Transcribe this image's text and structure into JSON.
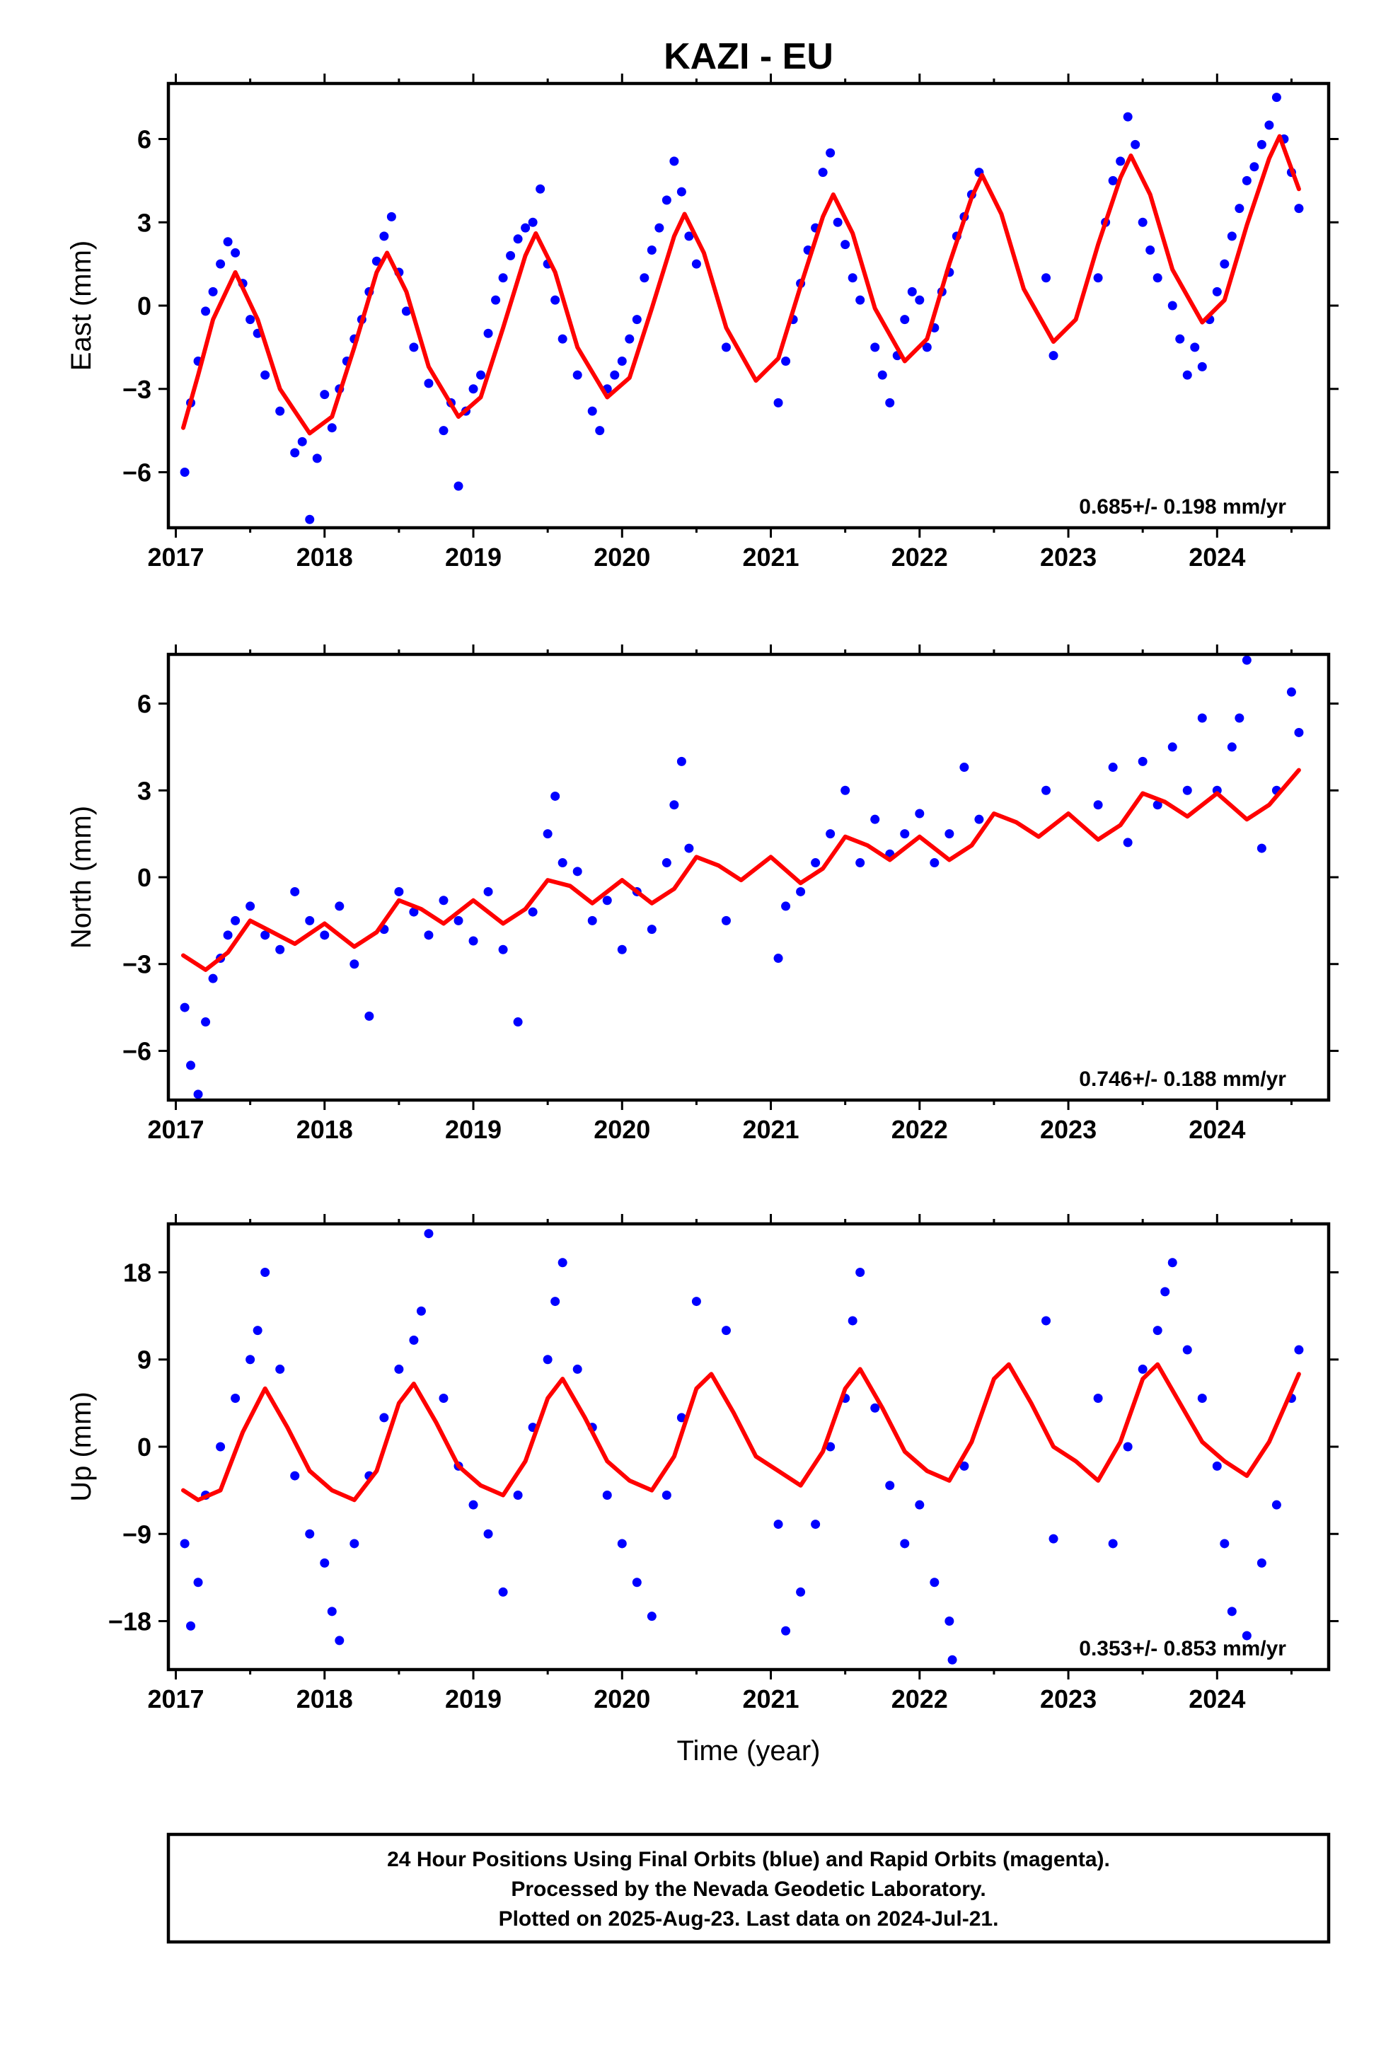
{
  "title": "KAZI - EU",
  "colors": {
    "obs": "#0000ff",
    "model": "#ff0000",
    "axes": "#000000"
  },
  "xlabel": "Time (year)",
  "footer": {
    "lines": [
      "24 Hour Positions Using Final Orbits (blue) and Rapid Orbits (magenta).",
      "Processed by the Nevada Geodetic Laboratory.",
      "Plotted on 2025-Aug-23. Last data on 2024-Jul-21."
    ]
  },
  "chart_data": [
    {
      "type": "scatter",
      "component": "east",
      "ylabel": "East (mm)",
      "xlim": [
        2016.95,
        2024.75
      ],
      "ylim": [
        -8,
        8
      ],
      "xticks": [
        2017,
        2018,
        2019,
        2020,
        2021,
        2022,
        2023,
        2024
      ],
      "yticks": [
        -6,
        -3,
        0,
        3,
        6
      ],
      "ytick_labels": [
        "−6",
        "−3",
        "0",
        "3",
        "6"
      ],
      "rate_label": "0.685+/- 0.198 mm/yr",
      "rate_mm_per_yr": 0.685,
      "series": [
        {
          "name": "model",
          "style": "line",
          "x": [
            2017.05,
            2017.15,
            2017.25,
            2017.4,
            2017.55,
            2017.7,
            2017.9,
            2018.05,
            2018.2,
            2018.35,
            2018.42,
            2018.55,
            2018.7,
            2018.9,
            2019.05,
            2019.2,
            2019.35,
            2019.42,
            2019.55,
            2019.7,
            2019.9,
            2020.05,
            2020.2,
            2020.35,
            2020.42,
            2020.55,
            2020.7,
            2020.9,
            2021.05,
            2021.2,
            2021.35,
            2021.42,
            2021.55,
            2021.7,
            2021.9,
            2022.05,
            2022.2,
            2022.35,
            2022.42,
            2022.55,
            2022.7,
            2022.9,
            2023.05,
            2023.2,
            2023.35,
            2023.42,
            2023.55,
            2023.7,
            2023.9,
            2024.05,
            2024.2,
            2024.35,
            2024.42,
            2024.55
          ],
          "y": [
            -4.4,
            -2.5,
            -0.5,
            1.2,
            -0.5,
            -3.0,
            -4.6,
            -4.0,
            -1.5,
            1.2,
            1.9,
            0.5,
            -2.2,
            -4.0,
            -3.3,
            -0.8,
            1.8,
            2.6,
            1.2,
            -1.5,
            -3.3,
            -2.6,
            -0.1,
            2.5,
            3.3,
            1.9,
            -0.8,
            -2.7,
            -1.9,
            0.7,
            3.2,
            4.0,
            2.6,
            -0.1,
            -2.0,
            -1.2,
            1.5,
            3.9,
            4.7,
            3.3,
            0.6,
            -1.3,
            -0.5,
            2.2,
            4.6,
            5.4,
            4.0,
            1.3,
            -0.6,
            0.2,
            2.9,
            5.3,
            6.1,
            4.2
          ]
        },
        {
          "name": "observations",
          "style": "points",
          "x": [
            2017.06,
            2017.1,
            2017.15,
            2017.2,
            2017.25,
            2017.3,
            2017.35,
            2017.4,
            2017.45,
            2017.5,
            2017.55,
            2017.6,
            2017.7,
            2017.8,
            2017.85,
            2017.9,
            2017.95,
            2018.0,
            2018.05,
            2018.1,
            2018.15,
            2018.2,
            2018.25,
            2018.3,
            2018.35,
            2018.4,
            2018.45,
            2018.5,
            2018.55,
            2018.6,
            2018.7,
            2018.8,
            2018.85,
            2018.9,
            2018.95,
            2019.0,
            2019.05,
            2019.1,
            2019.15,
            2019.2,
            2019.25,
            2019.3,
            2019.35,
            2019.4,
            2019.45,
            2019.5,
            2019.55,
            2019.6,
            2019.7,
            2019.8,
            2019.85,
            2019.9,
            2019.95,
            2020.0,
            2020.05,
            2020.1,
            2020.15,
            2020.2,
            2020.25,
            2020.3,
            2020.35,
            2020.4,
            2020.45,
            2020.5,
            2020.7,
            2021.05,
            2021.1,
            2021.15,
            2021.2,
            2021.25,
            2021.3,
            2021.35,
            2021.4,
            2021.45,
            2021.5,
            2021.55,
            2021.6,
            2021.7,
            2021.75,
            2021.8,
            2021.85,
            2021.9,
            2021.95,
            2022.0,
            2022.05,
            2022.1,
            2022.15,
            2022.2,
            2022.25,
            2022.3,
            2022.35,
            2022.4,
            2022.85,
            2022.9,
            2023.2,
            2023.25,
            2023.3,
            2023.35,
            2023.4,
            2023.45,
            2023.5,
            2023.55,
            2023.6,
            2023.7,
            2023.75,
            2023.8,
            2023.85,
            2023.9,
            2023.95,
            2024.0,
            2024.05,
            2024.1,
            2024.15,
            2024.2,
            2024.25,
            2024.3,
            2024.35,
            2024.4,
            2024.45,
            2024.5,
            2024.55
          ],
          "y": [
            -6.0,
            -3.5,
            -2.0,
            -0.2,
            0.5,
            1.5,
            2.3,
            1.9,
            0.8,
            -0.5,
            -1.0,
            -2.5,
            -3.8,
            -5.3,
            -4.9,
            -7.7,
            -5.5,
            -3.2,
            -4.4,
            -3.0,
            -2.0,
            -1.2,
            -0.5,
            0.5,
            1.6,
            2.5,
            3.2,
            1.2,
            -0.2,
            -1.5,
            -2.8,
            -4.5,
            -3.5,
            -6.5,
            -3.8,
            -3.0,
            -2.5,
            -1.0,
            0.2,
            1.0,
            1.8,
            2.4,
            2.8,
            3.0,
            4.2,
            1.5,
            0.2,
            -1.2,
            -2.5,
            -3.8,
            -4.5,
            -3.0,
            -2.5,
            -2.0,
            -1.2,
            -0.5,
            1.0,
            2.0,
            2.8,
            3.8,
            5.2,
            4.1,
            2.5,
            1.5,
            -1.5,
            -3.5,
            -2.0,
            -0.5,
            0.8,
            2.0,
            2.8,
            4.8,
            5.5,
            3.0,
            2.2,
            1.0,
            0.2,
            -1.5,
            -2.5,
            -3.5,
            -1.8,
            -0.5,
            0.5,
            0.2,
            -1.5,
            -0.8,
            0.5,
            1.2,
            2.5,
            3.2,
            4.0,
            4.8,
            1.0,
            -1.8,
            1.0,
            3.0,
            4.5,
            5.2,
            6.8,
            5.8,
            3.0,
            2.0,
            1.0,
            0.0,
            -1.2,
            -2.5,
            -1.5,
            -2.2,
            -0.5,
            0.5,
            1.5,
            2.5,
            3.5,
            4.5,
            5.0,
            5.8,
            6.5,
            7.5,
            6.0,
            4.8,
            3.5
          ]
        }
      ]
    },
    {
      "type": "scatter",
      "component": "north",
      "ylabel": "North (mm)",
      "xlim": [
        2016.95,
        2024.75
      ],
      "ylim": [
        -7.7,
        7.7
      ],
      "xticks": [
        2017,
        2018,
        2019,
        2020,
        2021,
        2022,
        2023,
        2024
      ],
      "yticks": [
        -6,
        -3,
        0,
        3,
        6
      ],
      "ytick_labels": [
        "−6",
        "−3",
        "0",
        "3",
        "6"
      ],
      "rate_label": "0.746+/- 0.188 mm/yr",
      "rate_mm_per_yr": 0.746,
      "series": [
        {
          "name": "model",
          "style": "line",
          "x": [
            2017.05,
            2017.2,
            2017.35,
            2017.5,
            2017.65,
            2017.8,
            2018.0,
            2018.2,
            2018.35,
            2018.5,
            2018.65,
            2018.8,
            2019.0,
            2019.2,
            2019.35,
            2019.5,
            2019.65,
            2019.8,
            2020.0,
            2020.2,
            2020.35,
            2020.5,
            2020.65,
            2020.8,
            2021.0,
            2021.2,
            2021.35,
            2021.5,
            2021.65,
            2021.8,
            2022.0,
            2022.2,
            2022.35,
            2022.5,
            2022.65,
            2022.8,
            2023.0,
            2023.2,
            2023.35,
            2023.5,
            2023.65,
            2023.8,
            2024.0,
            2024.2,
            2024.35,
            2024.55
          ],
          "y": [
            -2.7,
            -3.2,
            -2.6,
            -1.5,
            -1.9,
            -2.3,
            -1.6,
            -2.4,
            -1.9,
            -0.8,
            -1.1,
            -1.6,
            -0.8,
            -1.6,
            -1.1,
            -0.1,
            -0.3,
            -0.9,
            -0.1,
            -0.9,
            -0.4,
            0.7,
            0.4,
            -0.1,
            0.7,
            -0.2,
            0.3,
            1.4,
            1.1,
            0.6,
            1.4,
            0.6,
            1.1,
            2.2,
            1.9,
            1.4,
            2.2,
            1.3,
            1.8,
            2.9,
            2.6,
            2.1,
            2.9,
            2.0,
            2.5,
            3.7
          ]
        },
        {
          "name": "observations",
          "style": "points",
          "x": [
            2017.06,
            2017.1,
            2017.15,
            2017.2,
            2017.25,
            2017.3,
            2017.35,
            2017.4,
            2017.5,
            2017.6,
            2017.7,
            2017.8,
            2017.9,
            2018.0,
            2018.1,
            2018.2,
            2018.3,
            2018.4,
            2018.5,
            2018.6,
            2018.7,
            2018.8,
            2018.9,
            2019.0,
            2019.1,
            2019.2,
            2019.3,
            2019.4,
            2019.5,
            2019.55,
            2019.6,
            2019.7,
            2019.8,
            2019.9,
            2020.0,
            2020.1,
            2020.2,
            2020.3,
            2020.35,
            2020.4,
            2020.45,
            2020.7,
            2021.05,
            2021.1,
            2021.2,
            2021.3,
            2021.4,
            2021.5,
            2021.6,
            2021.7,
            2021.8,
            2021.9,
            2022.0,
            2022.1,
            2022.2,
            2022.3,
            2022.4,
            2022.85,
            2023.2,
            2023.3,
            2023.4,
            2023.5,
            2023.6,
            2023.7,
            2023.8,
            2023.9,
            2024.0,
            2024.1,
            2024.15,
            2024.2,
            2024.3,
            2024.4,
            2024.5,
            2024.55
          ],
          "y": [
            -4.5,
            -6.5,
            -7.5,
            -5.0,
            -3.5,
            -2.8,
            -2.0,
            -1.5,
            -1.0,
            -2.0,
            -2.5,
            -0.5,
            -1.5,
            -2.0,
            -1.0,
            -3.0,
            -4.8,
            -1.8,
            -0.5,
            -1.2,
            -2.0,
            -0.8,
            -1.5,
            -2.2,
            -0.5,
            -2.5,
            -5.0,
            -1.2,
            1.5,
            2.8,
            0.5,
            0.2,
            -1.5,
            -0.8,
            -2.5,
            -0.5,
            -1.8,
            0.5,
            2.5,
            4.0,
            1.0,
            -1.5,
            -2.8,
            -1.0,
            -0.5,
            0.5,
            1.5,
            3.0,
            0.5,
            2.0,
            0.8,
            1.5,
            2.2,
            0.5,
            1.5,
            3.8,
            2.0,
            3.0,
            2.5,
            3.8,
            1.2,
            4.0,
            2.5,
            4.5,
            3.0,
            5.5,
            3.0,
            4.5,
            5.5,
            7.5,
            1.0,
            3.0,
            6.4,
            5.0
          ]
        }
      ]
    },
    {
      "type": "scatter",
      "component": "up",
      "ylabel": "Up (mm)",
      "xlim": [
        2016.95,
        2024.75
      ],
      "ylim": [
        -23,
        23
      ],
      "xticks": [
        2017,
        2018,
        2019,
        2020,
        2021,
        2022,
        2023,
        2024
      ],
      "yticks": [
        -18,
        -9,
        0,
        9,
        18
      ],
      "ytick_labels": [
        "−18",
        "−9",
        "0",
        "9",
        "18"
      ],
      "rate_label": "0.353+/- 0.853 mm/yr",
      "rate_mm_per_yr": 0.353,
      "series": [
        {
          "name": "model",
          "style": "line",
          "x": [
            2017.05,
            2017.15,
            2017.3,
            2017.45,
            2017.6,
            2017.75,
            2017.9,
            2018.05,
            2018.2,
            2018.35,
            2018.5,
            2018.6,
            2018.75,
            2018.9,
            2019.05,
            2019.2,
            2019.35,
            2019.5,
            2019.6,
            2019.75,
            2019.9,
            2020.05,
            2020.2,
            2020.35,
            2020.5,
            2020.6,
            2020.75,
            2020.9,
            2021.05,
            2021.2,
            2021.35,
            2021.5,
            2021.6,
            2021.75,
            2021.9,
            2022.05,
            2022.2,
            2022.35,
            2022.5,
            2022.6,
            2022.75,
            2022.9,
            2023.05,
            2023.2,
            2023.35,
            2023.5,
            2023.6,
            2023.75,
            2023.9,
            2024.05,
            2024.2,
            2024.35,
            2024.55
          ],
          "y": [
            -4.5,
            -5.5,
            -4.5,
            1.5,
            6.0,
            2.0,
            -2.5,
            -4.5,
            -5.5,
            -2.5,
            4.5,
            6.5,
            2.5,
            -2.0,
            -4.0,
            -5.0,
            -1.5,
            5.0,
            7.0,
            3.0,
            -1.5,
            -3.5,
            -4.5,
            -1.0,
            6.0,
            7.5,
            3.5,
            -1.0,
            -2.5,
            -4.0,
            -0.5,
            6.0,
            8.0,
            4.0,
            -0.5,
            -2.5,
            -3.5,
            0.5,
            7.0,
            8.5,
            4.5,
            0.0,
            -1.5,
            -3.5,
            0.5,
            7.0,
            8.5,
            4.5,
            0.5,
            -1.5,
            -3.0,
            0.5,
            7.5
          ]
        },
        {
          "name": "observations",
          "style": "points",
          "x": [
            2017.06,
            2017.1,
            2017.15,
            2017.2,
            2017.3,
            2017.4,
            2017.5,
            2017.55,
            2017.6,
            2017.7,
            2017.8,
            2017.9,
            2018.0,
            2018.05,
            2018.1,
            2018.2,
            2018.3,
            2018.4,
            2018.5,
            2018.6,
            2018.65,
            2018.7,
            2018.8,
            2018.9,
            2019.0,
            2019.1,
            2019.2,
            2019.3,
            2019.4,
            2019.5,
            2019.55,
            2019.6,
            2019.7,
            2019.8,
            2019.9,
            2020.0,
            2020.1,
            2020.2,
            2020.3,
            2020.4,
            2020.5,
            2020.7,
            2021.05,
            2021.1,
            2021.2,
            2021.3,
            2021.4,
            2021.5,
            2021.55,
            2021.6,
            2021.7,
            2021.8,
            2021.9,
            2022.0,
            2022.1,
            2022.2,
            2022.22,
            2022.3,
            2022.85,
            2022.9,
            2023.2,
            2023.3,
            2023.4,
            2023.5,
            2023.6,
            2023.65,
            2023.7,
            2023.8,
            2023.9,
            2024.0,
            2024.05,
            2024.1,
            2024.2,
            2024.3,
            2024.4,
            2024.5,
            2024.55
          ],
          "y": [
            -10.0,
            -18.5,
            -14.0,
            -5.0,
            0.0,
            5.0,
            9.0,
            12.0,
            18.0,
            8.0,
            -3.0,
            -9.0,
            -12.0,
            -17.0,
            -20.0,
            -10.0,
            -3.0,
            3.0,
            8.0,
            11.0,
            14.0,
            22.0,
            5.0,
            -2.0,
            -6.0,
            -9.0,
            -15.0,
            -5.0,
            2.0,
            9.0,
            15.0,
            19.0,
            8.0,
            2.0,
            -5.0,
            -10.0,
            -14.0,
            -17.5,
            -5.0,
            3.0,
            15.0,
            12.0,
            -8.0,
            -19.0,
            -15.0,
            -8.0,
            0.0,
            5.0,
            13.0,
            18.0,
            4.0,
            -4.0,
            -10.0,
            -6.0,
            -14.0,
            -18.0,
            -22.0,
            -2.0,
            13.0,
            -9.5,
            5.0,
            -10.0,
            0.0,
            8.0,
            12.0,
            16.0,
            19.0,
            10.0,
            5.0,
            -2.0,
            -10.0,
            -17.0,
            -19.5,
            -12.0,
            -6.0,
            5.0,
            10.0
          ]
        }
      ]
    }
  ]
}
